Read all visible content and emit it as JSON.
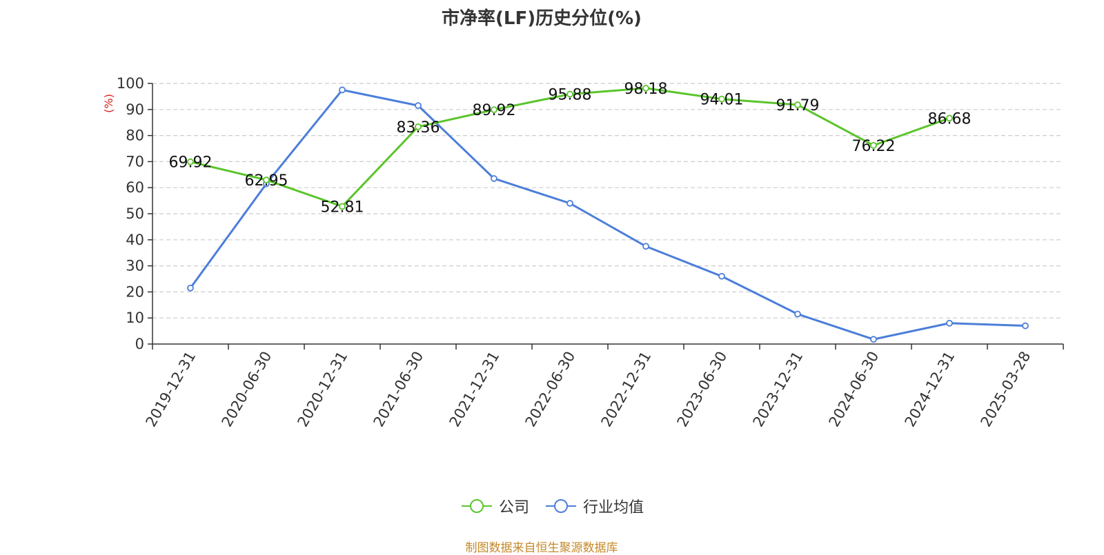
{
  "title": "市净率(LF)历史分位(%)",
  "source": "制图数据来自恒生聚源数据库",
  "colors": {
    "company": "#5ac42a",
    "industry": "#4c7ed9",
    "unit": "#e02020",
    "source": "#c48a2a"
  },
  "legend": [
    {
      "name": "公司",
      "icon": "circle-line-icon"
    },
    {
      "name": "行业均值",
      "icon": "circle-line-icon"
    }
  ],
  "chart_data": {
    "type": "line",
    "title": "市净率(LF)历史分位(%)",
    "ylabel": "(%)",
    "xlabel": "",
    "ylim": [
      0,
      100
    ],
    "yticks": [
      0,
      10,
      20,
      30,
      40,
      50,
      60,
      70,
      80,
      90,
      100
    ],
    "grid": true,
    "legend_position": "bottom",
    "categories": [
      "2019-12-31",
      "2020-06-30",
      "2020-12-31",
      "2021-06-30",
      "2021-12-31",
      "2022-06-30",
      "2022-12-31",
      "2023-06-30",
      "2023-12-31",
      "2024-06-30",
      "2024-12-31",
      "2025-03-28"
    ],
    "series": [
      {
        "name": "公司",
        "color": "#5ac42a",
        "show_labels": true,
        "values": [
          69.92,
          62.95,
          52.81,
          83.36,
          89.92,
          95.88,
          98.18,
          94.01,
          91.79,
          76.22,
          86.68,
          null
        ]
      },
      {
        "name": "行业均值",
        "color": "#4c7ed9",
        "show_labels": false,
        "values": [
          21.5,
          61.5,
          97.5,
          91.5,
          63.5,
          54.0,
          37.5,
          26.0,
          11.5,
          1.8,
          8.0,
          7.0
        ]
      }
    ]
  }
}
